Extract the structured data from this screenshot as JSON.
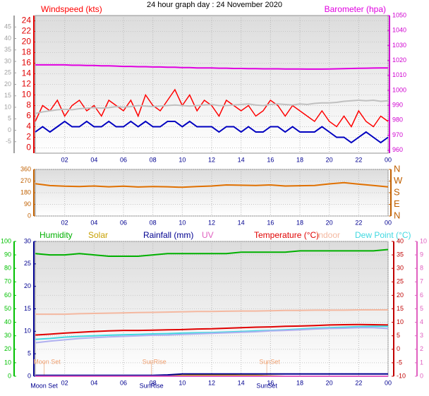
{
  "title": "24 hour graph day : 24 November 2020",
  "chart_data": [
    {
      "type": "line",
      "xlim": [
        0,
        24
      ],
      "xticks": [
        {
          "value": 2,
          "label": "02"
        },
        {
          "value": 4,
          "label": "04"
        },
        {
          "value": 6,
          "label": "06"
        },
        {
          "value": 8,
          "label": "08"
        },
        10,
        12,
        14,
        16,
        18,
        20,
        22,
        {
          "value": 24,
          "label": "00"
        }
      ],
      "grid": true,
      "axes": [
        {
          "color": "#e00000",
          "lim": [
            -1,
            25
          ],
          "ticks": [
            0,
            2,
            4,
            6,
            8,
            10,
            12,
            14,
            16,
            18,
            20,
            22,
            24
          ]
        },
        {
          "color": "#a0a0a0",
          "lim": [
            -10,
            50
          ],
          "ticks": [
            -5,
            0,
            5,
            10,
            15,
            20,
            25,
            30,
            35,
            40,
            45
          ]
        },
        {
          "color": "#d000d0",
          "lim": [
            958,
            1050
          ],
          "ticks": [
            960,
            970,
            980,
            990,
            1000,
            1010,
            1020,
            1030,
            1040,
            1050
          ]
        }
      ],
      "x": [
        0,
        0.5,
        1,
        1.5,
        2,
        2.5,
        3,
        3.5,
        4,
        4.5,
        5,
        5.5,
        6,
        6.5,
        7,
        7.5,
        8,
        8.5,
        9,
        9.5,
        10,
        10.5,
        11,
        11.5,
        12,
        12.5,
        13,
        13.5,
        14,
        14.5,
        15,
        15.5,
        16,
        16.5,
        17,
        17.5,
        18,
        18.5,
        19,
        19.5,
        20,
        20.5,
        21,
        21.5,
        22,
        22.5,
        23,
        23.5,
        24
      ],
      "series": [
        {
          "name": "Windspeed (kts)",
          "color": "#ff0000",
          "axis": 0,
          "values": [
            5,
            8,
            7,
            9,
            6,
            8,
            9,
            7,
            8,
            6,
            9,
            8,
            7,
            9,
            6,
            10,
            8,
            7,
            9,
            11,
            8,
            10,
            7,
            9,
            8,
            6,
            9,
            8,
            7,
            8,
            6,
            7,
            9,
            8,
            6,
            8,
            7,
            6,
            5,
            7,
            5,
            4,
            6,
            4,
            7,
            5,
            4,
            6,
            5
          ]
        },
        {
          "color": "#c0c0c0",
          "axis": 0,
          "values": [
            6.5,
            6.8,
            7,
            7.2,
            7.3,
            7.2,
            7.4,
            7.5,
            7.6,
            7.5,
            7.6,
            7.8,
            7.7,
            7.8,
            8,
            7.9,
            7.8,
            7.9,
            8,
            8.1,
            8,
            7.9,
            8,
            8.1,
            8.2,
            8,
            8,
            8.1,
            8.2,
            8.3,
            8.1,
            8,
            8.2,
            8.3,
            8.2,
            8.1,
            8.3,
            8.2,
            8.4,
            8.5,
            8.5,
            8.6,
            8.8,
            8.9,
            9,
            8.9,
            9,
            8.8,
            8.9
          ]
        },
        {
          "color": "#0000c0",
          "axis": 0,
          "values": [
            3,
            4,
            3,
            4,
            5,
            4,
            4,
            5,
            4,
            4,
            5,
            4,
            4,
            5,
            4,
            5,
            4,
            4,
            5,
            5,
            4,
            5,
            4,
            4,
            4,
            3,
            4,
            4,
            3,
            4,
            3,
            3,
            4,
            4,
            3,
            4,
            3,
            3,
            3,
            4,
            3,
            2,
            2,
            1,
            2,
            3,
            2,
            1,
            2
          ]
        },
        {
          "name": "Barometer (hpa)",
          "color": "#e000e0",
          "axis": 2,
          "values": [
            1017,
            1017,
            1017,
            1017,
            1017,
            1016.8,
            1016.8,
            1016.6,
            1016.6,
            1016.4,
            1016.4,
            1016.2,
            1016,
            1016,
            1015.8,
            1015.8,
            1015.6,
            1015.6,
            1015.4,
            1015.4,
            1015.2,
            1015.2,
            1015,
            1015,
            1015,
            1014.8,
            1014.8,
            1014.6,
            1014.6,
            1014.5,
            1014.5,
            1014.4,
            1014.4,
            1014.4,
            1014.3,
            1014.3,
            1014.3,
            1014.2,
            1014.2,
            1014.2,
            1014.3,
            1014.4,
            1014.5,
            1014.6,
            1014.7,
            1014.8,
            1014.9,
            1015,
            1015
          ]
        }
      ]
    },
    {
      "type": "line",
      "xlim": [
        0,
        24
      ],
      "xticks": [
        {
          "value": 2,
          "label": "02"
        },
        {
          "value": 4,
          "label": "04"
        },
        {
          "value": 6,
          "label": "06"
        },
        {
          "value": 8,
          "label": "08"
        },
        10,
        12,
        14,
        16,
        18,
        20,
        22,
        {
          "value": 24,
          "label": "00"
        }
      ],
      "grid": true,
      "axes": [
        {
          "color": "#c06000",
          "lim": [
            0,
            360
          ],
          "ticks": [
            0,
            90,
            180,
            270,
            360
          ]
        },
        {
          "color": "#c06000",
          "lim": [
            0,
            360
          ],
          "ticks": [
            {
              "value": 0,
              "label": "N"
            },
            {
              "value": 90,
              "label": "E"
            },
            {
              "value": 180,
              "label": "S"
            },
            {
              "value": 270,
              "label": "W"
            },
            {
              "value": 360,
              "label": "N"
            }
          ]
        }
      ],
      "x": [
        0,
        1,
        2,
        3,
        4,
        5,
        6,
        7,
        8,
        9,
        10,
        11,
        12,
        13,
        14,
        15,
        16,
        17,
        18,
        19,
        20,
        21,
        22,
        23,
        24
      ],
      "series": [
        {
          "color": "#e07000",
          "axis": 0,
          "values": [
            250,
            235,
            230,
            228,
            232,
            226,
            230,
            224,
            228,
            226,
            222,
            228,
            232,
            240,
            238,
            236,
            240,
            232,
            234,
            236,
            248,
            258,
            246,
            236,
            225
          ]
        }
      ]
    },
    {
      "type": "line",
      "xlim": [
        0,
        24
      ],
      "xticks": [
        {
          "value": 2,
          "label": "02"
        },
        {
          "value": 4,
          "label": "04"
        },
        {
          "value": 6,
          "label": "06"
        },
        {
          "value": 8,
          "label": "08"
        },
        10,
        12,
        14,
        16,
        18,
        20,
        22,
        {
          "value": 24,
          "label": "00"
        }
      ],
      "grid": true,
      "axes": [
        {
          "color": "#00c000",
          "lim": [
            0,
            100
          ],
          "ticks": [
            0,
            10,
            20,
            30,
            40,
            50,
            60,
            70,
            80,
            90,
            100
          ]
        },
        {
          "color": "#000090",
          "lim": [
            0,
            30
          ],
          "ticks": [
            0,
            5,
            10,
            15,
            20,
            25,
            30
          ]
        },
        {
          "color": "#c00000",
          "lim": [
            -10,
            40
          ],
          "ticks": [
            -10,
            -5,
            0,
            5,
            10,
            15,
            20,
            25,
            30,
            35,
            40
          ]
        },
        {
          "color": "#e060c0",
          "lim": [
            0,
            10
          ],
          "ticks": [
            0,
            1,
            2,
            3,
            4,
            5,
            6,
            7,
            8,
            9,
            10
          ]
        }
      ],
      "x": [
        0,
        1,
        2,
        3,
        4,
        5,
        6,
        7,
        8,
        9,
        10,
        11,
        12,
        13,
        14,
        15,
        16,
        17,
        18,
        19,
        20,
        21,
        22,
        23,
        24
      ],
      "series": [
        {
          "name": "Humidity",
          "color": "#00b000",
          "axis": 0,
          "values": [
            91,
            90,
            90,
            91,
            90,
            89,
            89,
            89,
            90,
            91,
            91,
            91,
            91,
            91,
            92,
            92,
            92,
            92,
            93,
            93,
            93,
            93,
            93,
            93,
            94
          ]
        },
        {
          "name": "Solar",
          "color": "#c8a000",
          "axis": 1,
          "values": [
            0,
            0,
            0,
            0,
            0,
            0,
            0,
            0,
            0,
            0.1,
            0.2,
            0.3,
            0.3,
            0.3,
            0.2,
            0.2,
            0.1,
            0,
            0,
            0,
            0,
            0,
            0,
            0,
            0
          ]
        },
        {
          "name": "Rainfall (mm)",
          "color": "#000090",
          "axis": 1,
          "values": [
            0.2,
            0.2,
            0.2,
            0.2,
            0.2,
            0.2,
            0.2,
            0.2,
            0.2,
            0.3,
            0.5,
            0.5,
            0.5,
            0.5,
            0.5,
            0.5,
            0.5,
            0.5,
            0.5,
            0.5,
            0.5,
            0.5,
            0.5,
            0.5,
            0.5
          ]
        },
        {
          "name": "UV",
          "color": "#e060c0",
          "axis": 3,
          "values": [
            0,
            0,
            0,
            0,
            0,
            0,
            0,
            0,
            0,
            0,
            0,
            0,
            0,
            0,
            0,
            0,
            0,
            0,
            0,
            0,
            0,
            0,
            0,
            0,
            0
          ]
        },
        {
          "name": "Temperature (°C)",
          "color": "#e00000",
          "axis": 2,
          "values": [
            5.3,
            5.6,
            6,
            6.3,
            6.6,
            6.8,
            7,
            7,
            7.1,
            7.2,
            7.3,
            7.5,
            7.6,
            7.8,
            8,
            8.2,
            8.3,
            8.5,
            8.6,
            8.8,
            9,
            9.1,
            9.2,
            9.1,
            9
          ]
        },
        {
          "name": "Indoor",
          "color": "#f4b8a0",
          "axis": 2,
          "values": [
            13,
            13,
            13,
            13.2,
            13.3,
            13.4,
            13.5,
            13.6,
            13.7,
            13.8,
            13.9,
            14,
            14,
            14.1,
            14.2,
            14.2,
            14.3,
            14.4,
            14.4,
            14.5,
            14.5,
            14.5,
            14.6,
            14.6,
            14.6
          ]
        },
        {
          "name": "Dew Point (°C)",
          "color": "#40d8e0",
          "axis": 2,
          "values": [
            3.7,
            4,
            4.5,
            4.8,
            5,
            5.2,
            5.4,
            5.5,
            5.7,
            5.8,
            6,
            6.1,
            6.2,
            6.4,
            6.6,
            6.8,
            7,
            7.2,
            7.5,
            7.8,
            8,
            8.2,
            8.4,
            8.5,
            8.5
          ]
        },
        {
          "color": "#b0b0f0",
          "axis": 2,
          "values": [
            2.4,
            3,
            3.5,
            4,
            4.3,
            4.6,
            4.8,
            5,
            5.2,
            5.3,
            5.5,
            5.7,
            5.9,
            6.1,
            6.3,
            6.5,
            6.8,
            7,
            7.2,
            7.5,
            7.7,
            7.8,
            8,
            8,
            7.7
          ]
        }
      ],
      "annotations": [
        {
          "text": "Moon Set",
          "x": 0.6
        },
        {
          "text": "SunRise",
          "x": 7.9
        },
        {
          "text": "SunSet",
          "x": 15.75
        }
      ]
    }
  ]
}
